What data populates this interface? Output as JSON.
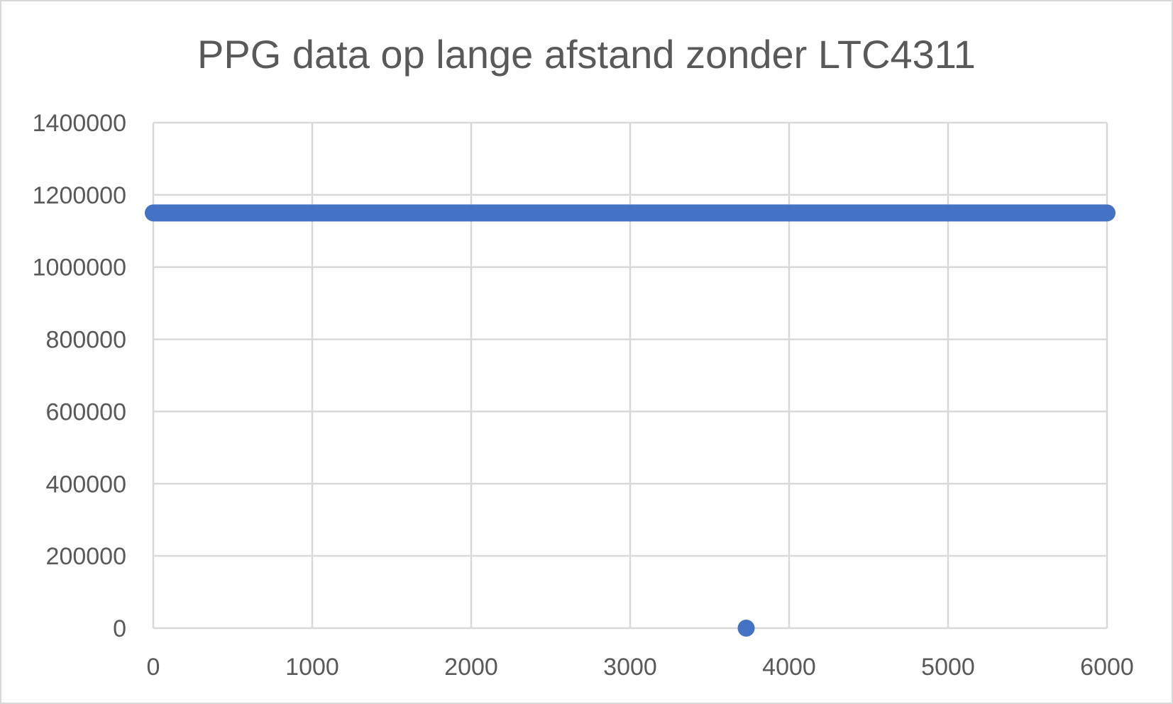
{
  "chart_data": {
    "type": "scatter",
    "title": "PPG data op lange afstand zonder LTC4311",
    "xlabel": "",
    "ylabel": "",
    "xlim": [
      0,
      6000
    ],
    "ylim": [
      0,
      1400000
    ],
    "x_ticks": [
      0,
      1000,
      2000,
      3000,
      4000,
      5000,
      6000
    ],
    "y_ticks": [
      0,
      200000,
      400000,
      600000,
      800000,
      1000000,
      1200000,
      1400000
    ],
    "x_tick_labels": [
      "0",
      "1000",
      "2000",
      "3000",
      "4000",
      "5000",
      "6000"
    ],
    "y_tick_labels": [
      "0",
      "200000",
      "400000",
      "600000",
      "800000",
      "1000000",
      "1200000",
      "1400000"
    ],
    "grid": true,
    "legend": "none",
    "series": [
      {
        "color": "#4472c4",
        "constant_segment": {
          "x_start": 0,
          "x_end": 6000,
          "y": 1150000
        },
        "outliers": [
          {
            "x": 3730,
            "y": 0
          }
        ]
      }
    ]
  }
}
